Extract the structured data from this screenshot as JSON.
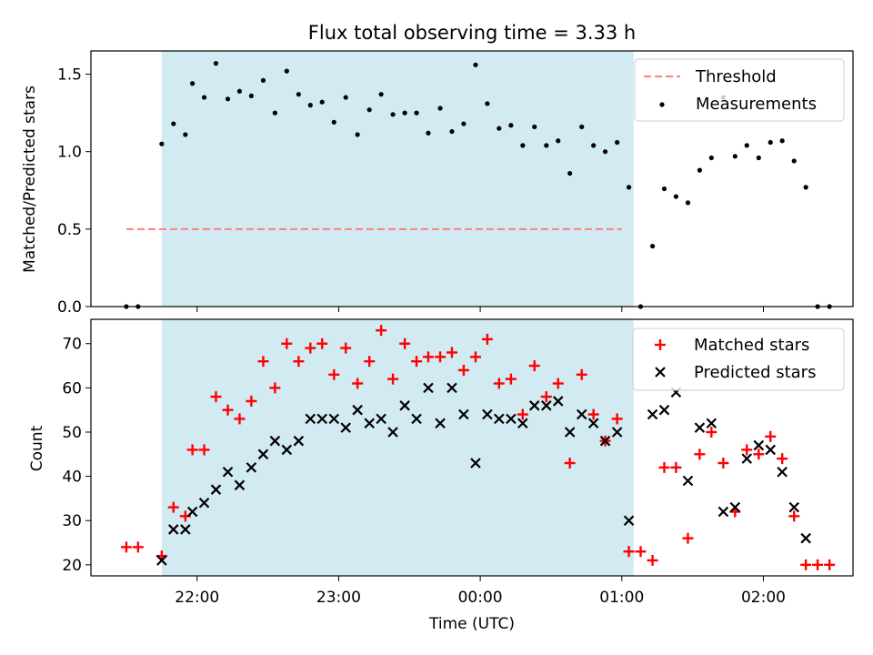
{
  "title": "Flux total observing time = 3.33 h",
  "chart_data": [
    {
      "type": "scatter",
      "panel": "top",
      "ylabel": "Matched/Predicted stars",
      "xlabel": "",
      "ylim": [
        0,
        1.65
      ],
      "yticks": [
        0.0,
        0.5,
        1.0,
        1.5
      ],
      "ytick_labels": [
        "0.0",
        "0.5",
        "1.0",
        "1.5"
      ],
      "legend_location": "top-right",
      "grid": false,
      "threshold": {
        "name": "Threshold",
        "y": 0.5,
        "x_start": 21.5,
        "x_end": 25.0,
        "color": "#ff7f7f",
        "style": "dashed"
      },
      "highlight": {
        "x_start": 21.75,
        "x_end": 25.083,
        "color": "#add8e6"
      },
      "series": [
        {
          "name": "Measurements",
          "marker": "dot",
          "color": "#000000",
          "points": [
            [
              21.5,
              0.0
            ],
            [
              21.583,
              0.0
            ],
            [
              21.75,
              1.05
            ],
            [
              21.833,
              1.18
            ],
            [
              21.917,
              1.11
            ],
            [
              21.967,
              1.44
            ],
            [
              22.05,
              1.35
            ],
            [
              22.133,
              1.57
            ],
            [
              22.217,
              1.34
            ],
            [
              22.3,
              1.39
            ],
            [
              22.383,
              1.36
            ],
            [
              22.467,
              1.46
            ],
            [
              22.55,
              1.25
            ],
            [
              22.633,
              1.52
            ],
            [
              22.717,
              1.37
            ],
            [
              22.8,
              1.3
            ],
            [
              22.883,
              1.32
            ],
            [
              22.967,
              1.19
            ],
            [
              23.05,
              1.35
            ],
            [
              23.133,
              1.11
            ],
            [
              23.217,
              1.27
            ],
            [
              23.3,
              1.37
            ],
            [
              23.383,
              1.24
            ],
            [
              23.467,
              1.25
            ],
            [
              23.55,
              1.25
            ],
            [
              23.633,
              1.12
            ],
            [
              23.717,
              1.28
            ],
            [
              23.8,
              1.13
            ],
            [
              23.883,
              1.18
            ],
            [
              23.967,
              1.56
            ],
            [
              24.05,
              1.31
            ],
            [
              24.133,
              1.15
            ],
            [
              24.217,
              1.17
            ],
            [
              24.3,
              1.04
            ],
            [
              24.383,
              1.16
            ],
            [
              24.467,
              1.04
            ],
            [
              24.55,
              1.07
            ],
            [
              24.633,
              0.86
            ],
            [
              24.717,
              1.16
            ],
            [
              24.8,
              1.04
            ],
            [
              24.883,
              1.0
            ],
            [
              24.967,
              1.06
            ],
            [
              25.05,
              0.77
            ],
            [
              25.133,
              0.0
            ],
            [
              25.217,
              0.39
            ],
            [
              25.3,
              0.76
            ],
            [
              25.383,
              0.71
            ],
            [
              25.467,
              0.67
            ],
            [
              25.55,
              0.88
            ],
            [
              25.633,
              0.96
            ],
            [
              25.717,
              1.35
            ],
            [
              25.8,
              0.97
            ],
            [
              25.883,
              1.04
            ],
            [
              25.967,
              0.96
            ],
            [
              26.05,
              1.06
            ],
            [
              26.133,
              1.07
            ],
            [
              26.217,
              0.94
            ],
            [
              26.3,
              0.77
            ],
            [
              26.383,
              0.0
            ],
            [
              26.467,
              0.0
            ]
          ]
        }
      ]
    },
    {
      "type": "scatter",
      "panel": "bottom",
      "ylabel": "Count",
      "xlabel": "Time (UTC)",
      "ylim": [
        17.5,
        75.5
      ],
      "yticks": [
        20,
        30,
        40,
        50,
        60,
        70
      ],
      "ytick_labels": [
        "20",
        "30",
        "40",
        "50",
        "60",
        "70"
      ],
      "xlim": [
        21.25,
        26.633
      ],
      "xticks": [
        22,
        23,
        24,
        25,
        26
      ],
      "xtick_labels": [
        "22:00",
        "23:00",
        "00:00",
        "01:00",
        "02:00"
      ],
      "legend_location": "top-right",
      "grid": false,
      "highlight": {
        "x_start": 21.75,
        "x_end": 25.083,
        "color": "#add8e6"
      },
      "series": [
        {
          "name": "Matched stars",
          "marker": "plus",
          "color": "#ff0000",
          "points": [
            [
              21.5,
              24
            ],
            [
              21.583,
              24
            ],
            [
              21.75,
              22
            ],
            [
              21.833,
              33
            ],
            [
              21.917,
              31
            ],
            [
              21.967,
              46
            ],
            [
              22.05,
              46
            ],
            [
              22.133,
              58
            ],
            [
              22.217,
              55
            ],
            [
              22.3,
              53
            ],
            [
              22.383,
              57
            ],
            [
              22.467,
              66
            ],
            [
              22.55,
              60
            ],
            [
              22.633,
              70
            ],
            [
              22.717,
              66
            ],
            [
              22.8,
              69
            ],
            [
              22.883,
              70
            ],
            [
              22.967,
              63
            ],
            [
              23.05,
              69
            ],
            [
              23.133,
              61
            ],
            [
              23.217,
              66
            ],
            [
              23.3,
              73
            ],
            [
              23.383,
              62
            ],
            [
              23.467,
              70
            ],
            [
              23.55,
              66
            ],
            [
              23.633,
              67
            ],
            [
              23.717,
              67
            ],
            [
              23.8,
              68
            ],
            [
              23.883,
              64
            ],
            [
              23.967,
              67
            ],
            [
              24.05,
              71
            ],
            [
              24.133,
              61
            ],
            [
              24.217,
              62
            ],
            [
              24.3,
              54
            ],
            [
              24.383,
              65
            ],
            [
              24.467,
              58
            ],
            [
              24.55,
              61
            ],
            [
              24.633,
              43
            ],
            [
              24.717,
              63
            ],
            [
              24.8,
              54
            ],
            [
              24.883,
              48
            ],
            [
              24.967,
              53
            ],
            [
              25.05,
              23
            ],
            [
              25.133,
              23
            ],
            [
              25.217,
              21
            ],
            [
              25.3,
              42
            ],
            [
              25.383,
              42
            ],
            [
              25.467,
              26
            ],
            [
              25.55,
              45
            ],
            [
              25.633,
              50
            ],
            [
              25.717,
              43
            ],
            [
              25.8,
              32
            ],
            [
              25.883,
              46
            ],
            [
              25.967,
              45
            ],
            [
              26.05,
              49
            ],
            [
              26.133,
              44
            ],
            [
              26.217,
              31
            ],
            [
              26.3,
              20
            ],
            [
              26.383,
              20
            ],
            [
              26.467,
              20
            ]
          ]
        },
        {
          "name": "Predicted stars",
          "marker": "x",
          "color": "#000000",
          "points": [
            [
              21.75,
              21
            ],
            [
              21.833,
              28
            ],
            [
              21.917,
              28
            ],
            [
              21.967,
              32
            ],
            [
              22.05,
              34
            ],
            [
              22.133,
              37
            ],
            [
              22.217,
              41
            ],
            [
              22.3,
              38
            ],
            [
              22.383,
              42
            ],
            [
              22.467,
              45
            ],
            [
              22.55,
              48
            ],
            [
              22.633,
              46
            ],
            [
              22.717,
              48
            ],
            [
              22.8,
              53
            ],
            [
              22.883,
              53
            ],
            [
              22.967,
              53
            ],
            [
              23.05,
              51
            ],
            [
              23.133,
              55
            ],
            [
              23.217,
              52
            ],
            [
              23.3,
              53
            ],
            [
              23.383,
              50
            ],
            [
              23.467,
              56
            ],
            [
              23.55,
              53
            ],
            [
              23.633,
              60
            ],
            [
              23.717,
              52
            ],
            [
              23.8,
              60
            ],
            [
              23.883,
              54
            ],
            [
              23.967,
              43
            ],
            [
              24.05,
              54
            ],
            [
              24.133,
              53
            ],
            [
              24.217,
              53
            ],
            [
              24.3,
              52
            ],
            [
              24.383,
              56
            ],
            [
              24.467,
              56
            ],
            [
              24.55,
              57
            ],
            [
              24.633,
              50
            ],
            [
              24.717,
              54
            ],
            [
              24.8,
              52
            ],
            [
              24.883,
              48
            ],
            [
              24.967,
              50
            ],
            [
              25.05,
              30
            ],
            [
              25.217,
              54
            ],
            [
              25.3,
              55
            ],
            [
              25.383,
              59
            ],
            [
              25.467,
              39
            ],
            [
              25.55,
              51
            ],
            [
              25.633,
              52
            ],
            [
              25.717,
              32
            ],
            [
              25.8,
              33
            ],
            [
              25.883,
              44
            ],
            [
              25.967,
              47
            ],
            [
              26.05,
              46
            ],
            [
              26.133,
              41
            ],
            [
              26.217,
              33
            ],
            [
              26.3,
              26
            ]
          ]
        }
      ]
    }
  ]
}
